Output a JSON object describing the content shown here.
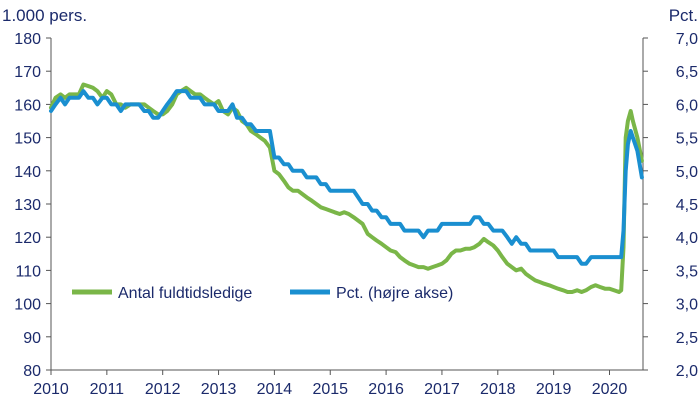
{
  "chart_data": {
    "type": "line",
    "left_axis_title": "1.000 pers.",
    "right_axis_title": "Pct.",
    "left_ylim": [
      80,
      180
    ],
    "right_ylim": [
      2.0,
      7.0
    ],
    "left_ticks": [
      "80",
      "90",
      "100",
      "110",
      "120",
      "130",
      "140",
      "150",
      "160",
      "170",
      "180"
    ],
    "right_ticks": [
      "2,0",
      "2,5",
      "3,0",
      "3,5",
      "4,0",
      "4,5",
      "5,0",
      "5,5",
      "6,0",
      "6,5",
      "7,0"
    ],
    "x_ticks": [
      "2010",
      "2011",
      "2012",
      "2013",
      "2014",
      "2015",
      "2016",
      "2017",
      "2018",
      "2019",
      "2020"
    ],
    "xlim": [
      2010.0,
      2020.6
    ],
    "grid": false,
    "legend_position": "lower-center",
    "series": [
      {
        "name": "Antal fuldtidsledige",
        "axis": "left",
        "color": "#7ab648",
        "points": [
          [
            2010.0,
            159
          ],
          [
            2010.08,
            162
          ],
          [
            2010.17,
            163
          ],
          [
            2010.25,
            162
          ],
          [
            2010.33,
            163
          ],
          [
            2010.42,
            163
          ],
          [
            2010.5,
            163
          ],
          [
            2010.58,
            166
          ],
          [
            2010.67,
            165.5
          ],
          [
            2010.75,
            165
          ],
          [
            2010.83,
            164
          ],
          [
            2010.92,
            162
          ],
          [
            2011.0,
            164
          ],
          [
            2011.08,
            163
          ],
          [
            2011.17,
            160
          ],
          [
            2011.25,
            160
          ],
          [
            2011.33,
            159
          ],
          [
            2011.42,
            160
          ],
          [
            2011.5,
            160
          ],
          [
            2011.58,
            160
          ],
          [
            2011.67,
            160
          ],
          [
            2011.75,
            159
          ],
          [
            2011.83,
            158
          ],
          [
            2011.92,
            157
          ],
          [
            2012.0,
            157
          ],
          [
            2012.08,
            158
          ],
          [
            2012.17,
            160
          ],
          [
            2012.25,
            163
          ],
          [
            2012.33,
            164
          ],
          [
            2012.42,
            165
          ],
          [
            2012.5,
            164
          ],
          [
            2012.58,
            163
          ],
          [
            2012.67,
            163
          ],
          [
            2012.75,
            162
          ],
          [
            2012.83,
            161
          ],
          [
            2012.92,
            160
          ],
          [
            2013.0,
            161
          ],
          [
            2013.08,
            158
          ],
          [
            2013.17,
            157
          ],
          [
            2013.25,
            159
          ],
          [
            2013.33,
            158
          ],
          [
            2013.42,
            155
          ],
          [
            2013.5,
            154
          ],
          [
            2013.58,
            152
          ],
          [
            2013.67,
            151
          ],
          [
            2013.75,
            150
          ],
          [
            2013.83,
            149
          ],
          [
            2013.92,
            147
          ],
          [
            2014.0,
            140
          ],
          [
            2014.08,
            139
          ],
          [
            2014.17,
            137
          ],
          [
            2014.25,
            135
          ],
          [
            2014.33,
            134
          ],
          [
            2014.42,
            134
          ],
          [
            2014.5,
            133
          ],
          [
            2014.58,
            132
          ],
          [
            2014.67,
            131
          ],
          [
            2014.75,
            130
          ],
          [
            2014.83,
            129
          ],
          [
            2014.92,
            128.5
          ],
          [
            2015.0,
            128
          ],
          [
            2015.08,
            127.5
          ],
          [
            2015.17,
            127
          ],
          [
            2015.25,
            127.5
          ],
          [
            2015.33,
            127
          ],
          [
            2015.42,
            126
          ],
          [
            2015.5,
            125
          ],
          [
            2015.58,
            124
          ],
          [
            2015.67,
            121
          ],
          [
            2015.75,
            120
          ],
          [
            2015.83,
            119
          ],
          [
            2015.92,
            118
          ],
          [
            2016.0,
            117
          ],
          [
            2016.08,
            116
          ],
          [
            2016.17,
            115.5
          ],
          [
            2016.25,
            114
          ],
          [
            2016.33,
            113
          ],
          [
            2016.42,
            112
          ],
          [
            2016.5,
            111.5
          ],
          [
            2016.58,
            111
          ],
          [
            2016.67,
            111
          ],
          [
            2016.75,
            110.5
          ],
          [
            2016.83,
            111
          ],
          [
            2016.92,
            111.5
          ],
          [
            2017.0,
            112
          ],
          [
            2017.08,
            113
          ],
          [
            2017.17,
            115
          ],
          [
            2017.25,
            116
          ],
          [
            2017.33,
            116
          ],
          [
            2017.42,
            116.5
          ],
          [
            2017.5,
            116.5
          ],
          [
            2017.58,
            117
          ],
          [
            2017.67,
            118
          ],
          [
            2017.75,
            119.5
          ],
          [
            2017.83,
            118.5
          ],
          [
            2017.92,
            117.5
          ],
          [
            2018.0,
            116
          ],
          [
            2018.08,
            114
          ],
          [
            2018.17,
            112
          ],
          [
            2018.25,
            111
          ],
          [
            2018.33,
            110
          ],
          [
            2018.42,
            110.5
          ],
          [
            2018.5,
            109
          ],
          [
            2018.58,
            108
          ],
          [
            2018.67,
            107
          ],
          [
            2018.75,
            106.5
          ],
          [
            2018.83,
            106
          ],
          [
            2018.92,
            105.5
          ],
          [
            2019.0,
            105
          ],
          [
            2019.08,
            104.5
          ],
          [
            2019.17,
            104
          ],
          [
            2019.25,
            103.5
          ],
          [
            2019.33,
            103.5
          ],
          [
            2019.42,
            104
          ],
          [
            2019.5,
            103.5
          ],
          [
            2019.58,
            104
          ],
          [
            2019.67,
            105
          ],
          [
            2019.75,
            105.5
          ],
          [
            2019.83,
            105
          ],
          [
            2019.92,
            104.5
          ],
          [
            2020.0,
            104.5
          ],
          [
            2020.08,
            104
          ],
          [
            2020.17,
            103.5
          ],
          [
            2020.21,
            104
          ],
          [
            2020.25,
            117
          ],
          [
            2020.29,
            150
          ],
          [
            2020.33,
            155
          ],
          [
            2020.38,
            158
          ],
          [
            2020.42,
            155
          ],
          [
            2020.5,
            150
          ],
          [
            2020.58,
            143
          ]
        ]
      },
      {
        "name": "Pct. (højre akse)",
        "axis": "right",
        "color": "#1a8fd0",
        "points": [
          [
            2010.0,
            5.9
          ],
          [
            2010.08,
            6.0
          ],
          [
            2010.17,
            6.1
          ],
          [
            2010.25,
            6.0
          ],
          [
            2010.33,
            6.1
          ],
          [
            2010.42,
            6.1
          ],
          [
            2010.5,
            6.1
          ],
          [
            2010.58,
            6.2
          ],
          [
            2010.67,
            6.1
          ],
          [
            2010.75,
            6.1
          ],
          [
            2010.83,
            6.0
          ],
          [
            2010.92,
            6.1
          ],
          [
            2011.0,
            6.1
          ],
          [
            2011.08,
            6.0
          ],
          [
            2011.17,
            6.0
          ],
          [
            2011.25,
            5.9
          ],
          [
            2011.33,
            6.0
          ],
          [
            2011.42,
            6.0
          ],
          [
            2011.5,
            6.0
          ],
          [
            2011.58,
            6.0
          ],
          [
            2011.67,
            5.9
          ],
          [
            2011.75,
            5.9
          ],
          [
            2011.83,
            5.8
          ],
          [
            2011.92,
            5.8
          ],
          [
            2012.0,
            5.9
          ],
          [
            2012.08,
            6.0
          ],
          [
            2012.17,
            6.1
          ],
          [
            2012.25,
            6.2
          ],
          [
            2012.33,
            6.2
          ],
          [
            2012.42,
            6.2
          ],
          [
            2012.5,
            6.1
          ],
          [
            2012.58,
            6.1
          ],
          [
            2012.67,
            6.1
          ],
          [
            2012.75,
            6.0
          ],
          [
            2012.83,
            6.0
          ],
          [
            2012.92,
            6.0
          ],
          [
            2013.0,
            5.9
          ],
          [
            2013.08,
            5.9
          ],
          [
            2013.17,
            5.9
          ],
          [
            2013.25,
            6.0
          ],
          [
            2013.33,
            5.8
          ],
          [
            2013.42,
            5.8
          ],
          [
            2013.5,
            5.7
          ],
          [
            2013.58,
            5.7
          ],
          [
            2013.67,
            5.6
          ],
          [
            2013.75,
            5.6
          ],
          [
            2013.83,
            5.6
          ],
          [
            2013.92,
            5.6
          ],
          [
            2014.0,
            5.2
          ],
          [
            2014.08,
            5.2
          ],
          [
            2014.17,
            5.1
          ],
          [
            2014.25,
            5.1
          ],
          [
            2014.33,
            5.0
          ],
          [
            2014.42,
            5.0
          ],
          [
            2014.5,
            5.0
          ],
          [
            2014.58,
            4.9
          ],
          [
            2014.67,
            4.9
          ],
          [
            2014.75,
            4.9
          ],
          [
            2014.83,
            4.8
          ],
          [
            2014.92,
            4.8
          ],
          [
            2015.0,
            4.7
          ],
          [
            2015.08,
            4.7
          ],
          [
            2015.17,
            4.7
          ],
          [
            2015.25,
            4.7
          ],
          [
            2015.33,
            4.7
          ],
          [
            2015.42,
            4.7
          ],
          [
            2015.5,
            4.6
          ],
          [
            2015.58,
            4.5
          ],
          [
            2015.67,
            4.5
          ],
          [
            2015.75,
            4.4
          ],
          [
            2015.83,
            4.4
          ],
          [
            2015.92,
            4.3
          ],
          [
            2016.0,
            4.3
          ],
          [
            2016.08,
            4.2
          ],
          [
            2016.17,
            4.2
          ],
          [
            2016.25,
            4.2
          ],
          [
            2016.33,
            4.1
          ],
          [
            2016.42,
            4.1
          ],
          [
            2016.5,
            4.1
          ],
          [
            2016.58,
            4.1
          ],
          [
            2016.67,
            4.0
          ],
          [
            2016.75,
            4.1
          ],
          [
            2016.83,
            4.1
          ],
          [
            2016.92,
            4.1
          ],
          [
            2017.0,
            4.2
          ],
          [
            2017.08,
            4.2
          ],
          [
            2017.17,
            4.2
          ],
          [
            2017.25,
            4.2
          ],
          [
            2017.33,
            4.2
          ],
          [
            2017.42,
            4.2
          ],
          [
            2017.5,
            4.2
          ],
          [
            2017.58,
            4.3
          ],
          [
            2017.67,
            4.3
          ],
          [
            2017.75,
            4.2
          ],
          [
            2017.83,
            4.2
          ],
          [
            2017.92,
            4.1
          ],
          [
            2018.0,
            4.1
          ],
          [
            2018.08,
            4.1
          ],
          [
            2018.17,
            4.0
          ],
          [
            2018.25,
            3.9
          ],
          [
            2018.33,
            4.0
          ],
          [
            2018.42,
            3.9
          ],
          [
            2018.5,
            3.9
          ],
          [
            2018.58,
            3.8
          ],
          [
            2018.67,
            3.8
          ],
          [
            2018.75,
            3.8
          ],
          [
            2018.83,
            3.8
          ],
          [
            2018.92,
            3.8
          ],
          [
            2019.0,
            3.8
          ],
          [
            2019.08,
            3.7
          ],
          [
            2019.17,
            3.7
          ],
          [
            2019.25,
            3.7
          ],
          [
            2019.33,
            3.7
          ],
          [
            2019.42,
            3.7
          ],
          [
            2019.5,
            3.6
          ],
          [
            2019.58,
            3.6
          ],
          [
            2019.67,
            3.7
          ],
          [
            2019.75,
            3.7
          ],
          [
            2019.83,
            3.7
          ],
          [
            2019.92,
            3.7
          ],
          [
            2020.0,
            3.7
          ],
          [
            2020.08,
            3.7
          ],
          [
            2020.17,
            3.7
          ],
          [
            2020.21,
            3.7
          ],
          [
            2020.25,
            4.1
          ],
          [
            2020.29,
            5.0
          ],
          [
            2020.33,
            5.4
          ],
          [
            2020.38,
            5.6
          ],
          [
            2020.42,
            5.5
          ],
          [
            2020.5,
            5.3
          ],
          [
            2020.58,
            4.9
          ]
        ]
      }
    ]
  }
}
